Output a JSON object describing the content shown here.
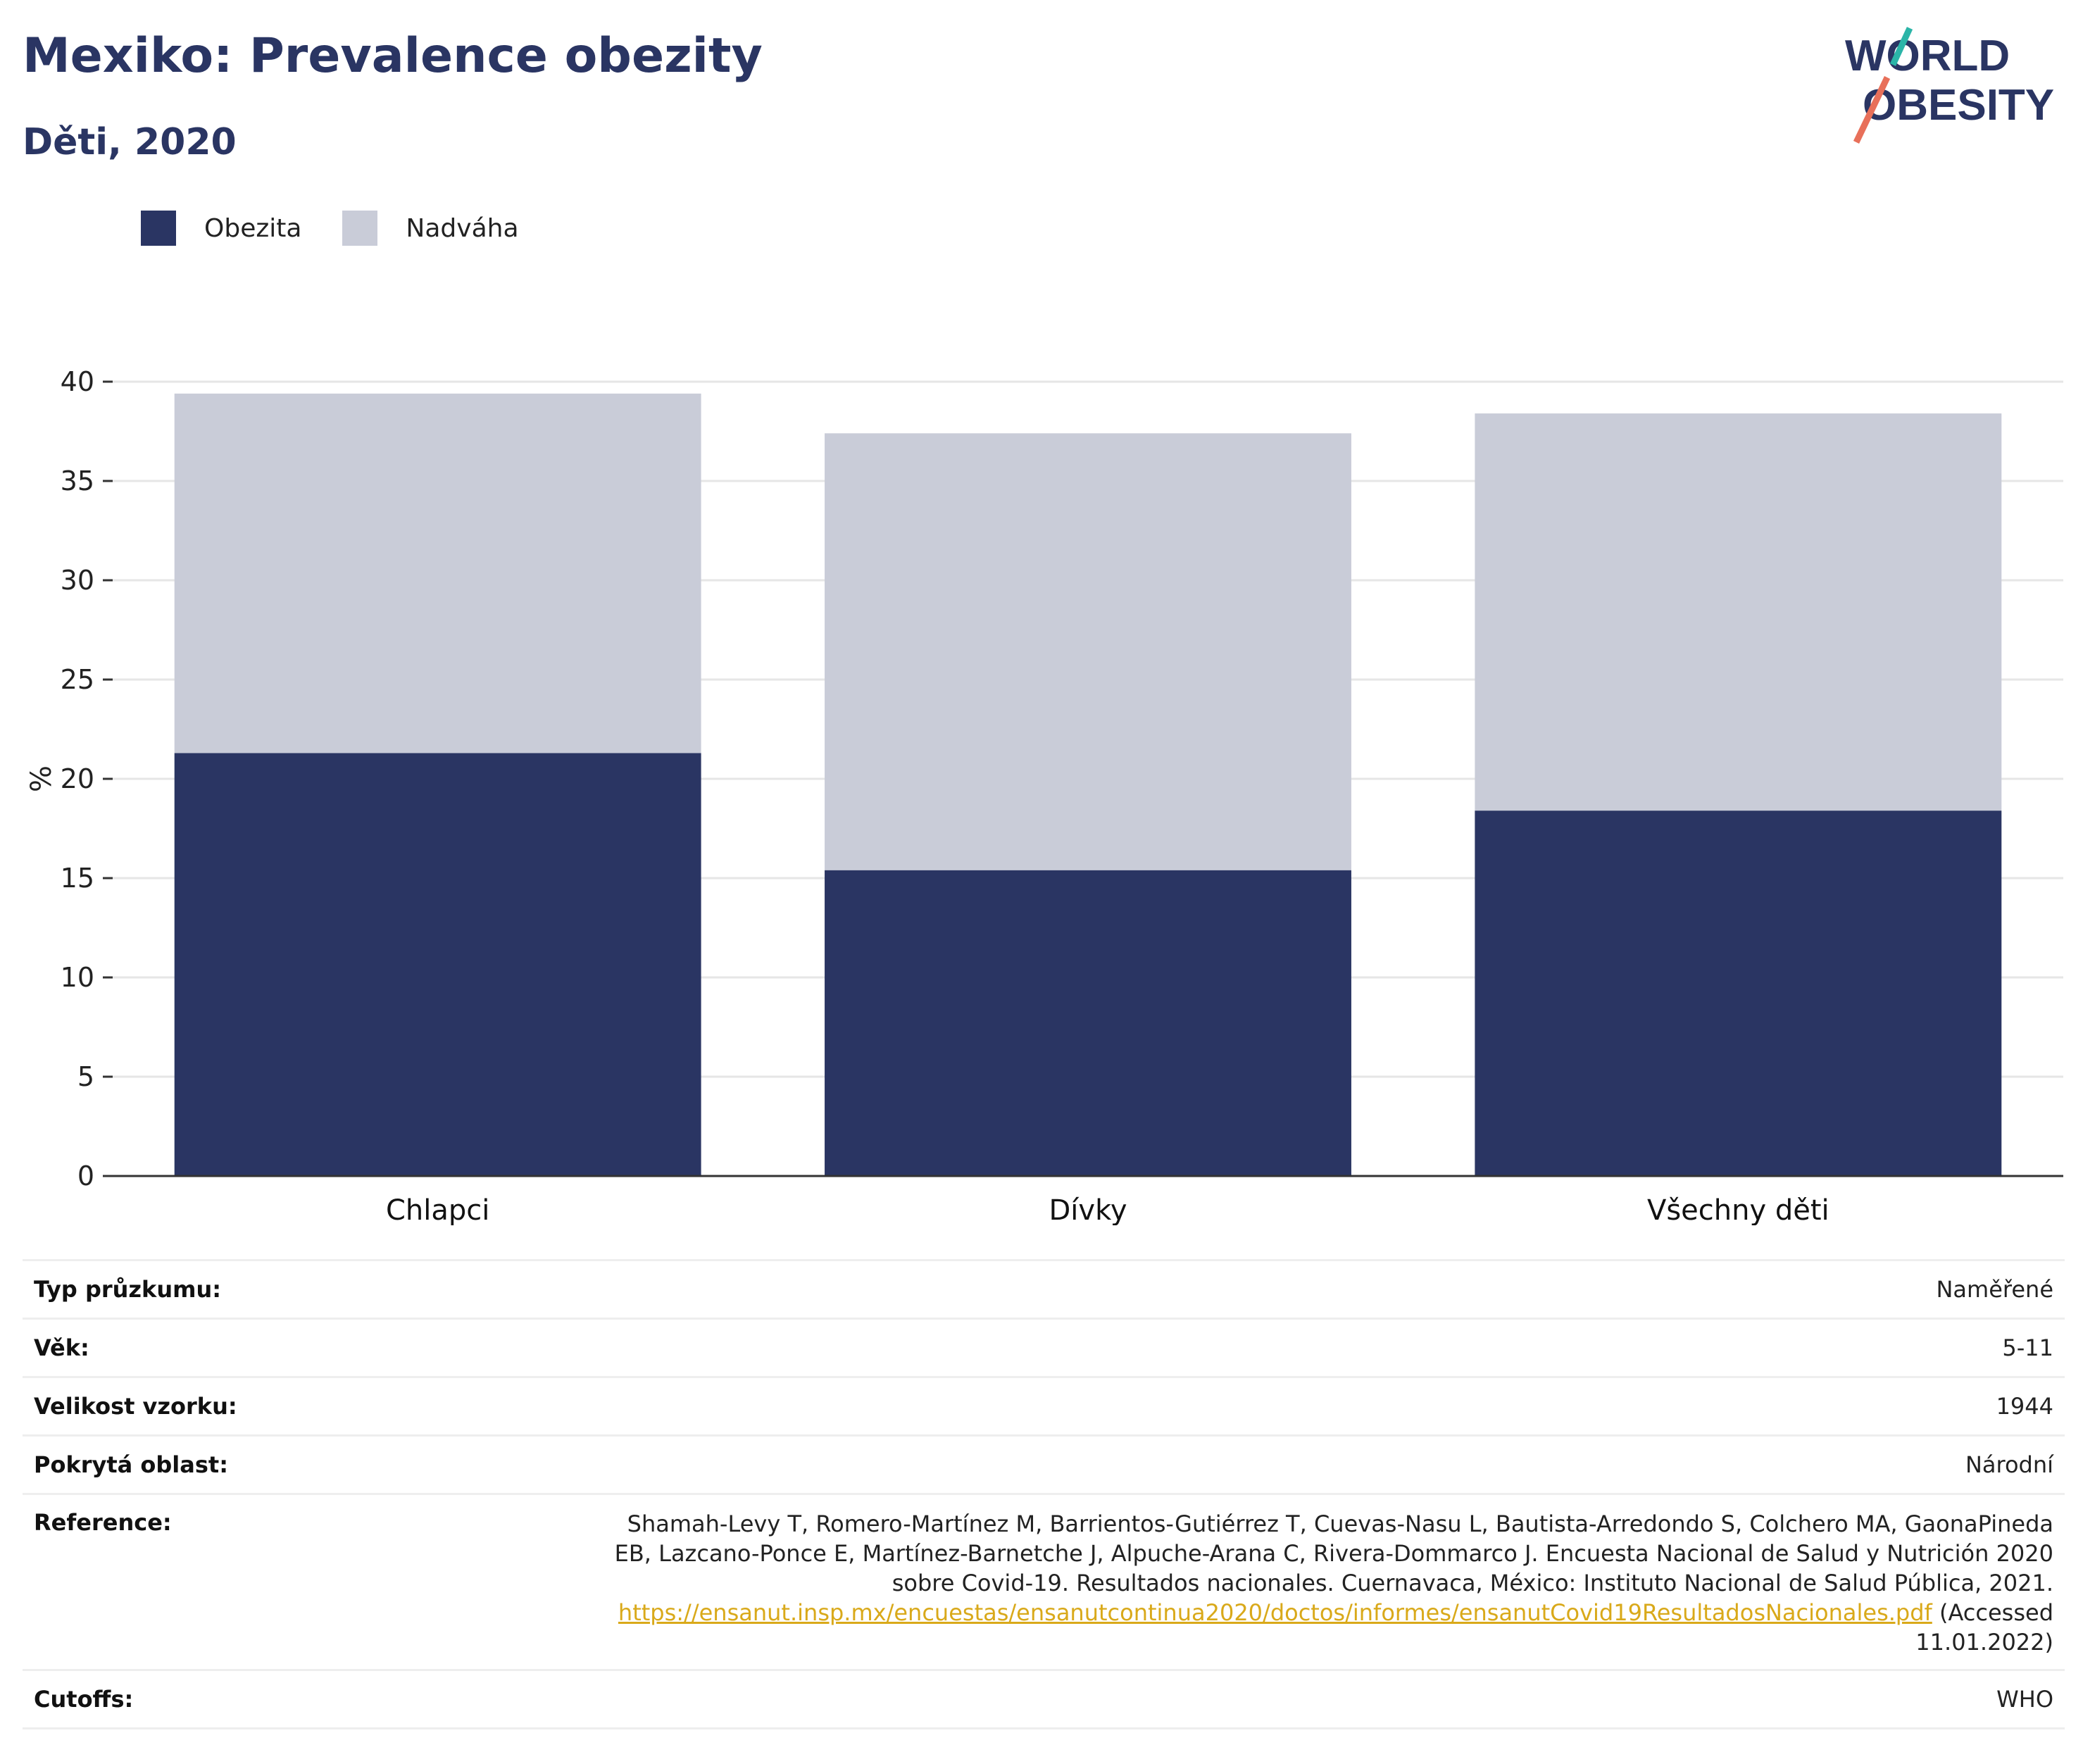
{
  "header": {
    "title": "Mexiko: Prevalence obezity",
    "subtitle": "Děti, 2020",
    "logo_text_line1": "WORLD",
    "logo_text_line2": "OBESITY"
  },
  "colors": {
    "obesity": "#2a3563",
    "overweight": "#c9ccd8",
    "title": "#2a3563",
    "link": "#d9a91a",
    "logo_teal": "#2bb5a8",
    "logo_coral": "#e8705a"
  },
  "chart_data": {
    "type": "bar",
    "stacked": true,
    "categories": [
      "Chlapci",
      "Dívky",
      "Všechny děti"
    ],
    "series": [
      {
        "name": "Obezita",
        "values": [
          21.3,
          15.4,
          18.4
        ]
      },
      {
        "name": "Nadváha",
        "values": [
          18.1,
          22.0,
          20.0
        ]
      }
    ],
    "ylabel": "%",
    "xlabel": "",
    "ylim": [
      0,
      40
    ],
    "yticks": [
      0,
      5,
      10,
      15,
      20,
      25,
      30,
      35,
      40
    ],
    "grid": true,
    "legend_position": "top-left"
  },
  "info_table": [
    {
      "label": "Typ průzkumu:",
      "value": "Naměřené"
    },
    {
      "label": "Věk:",
      "value": "5-11"
    },
    {
      "label": "Velikost vzorku:",
      "value": "1944"
    },
    {
      "label": "Pokrytá oblast:",
      "value": "Národní"
    },
    {
      "label": "Reference:",
      "value": "Shamah-Levy T, Romero-Martínez M, Barrientos-Gutiérrez T, Cuevas-Nasu L, Bautista-Arredondo S, Colchero MA, GaonaPineda EB, Lazcano-Ponce E, Martínez-Barnetche J, Alpuche-Arana C, Rivera-Dommarco J. Encuesta Nacional de Salud y Nutrición 2020 sobre Covid-19. Resultados nacionales. Cuernavaca, México: Instituto Nacional de Salud Pública, 2021.",
      "link": "https://ensanut.insp.mx/encuestas/ensanutcontinua2020/doctos/informes/ensanutCovid19ResultadosNacionales.pdf",
      "suffix": "(Accessed 11.01.2022)"
    },
    {
      "label": "Cutoffs:",
      "value": "WHO"
    }
  ]
}
